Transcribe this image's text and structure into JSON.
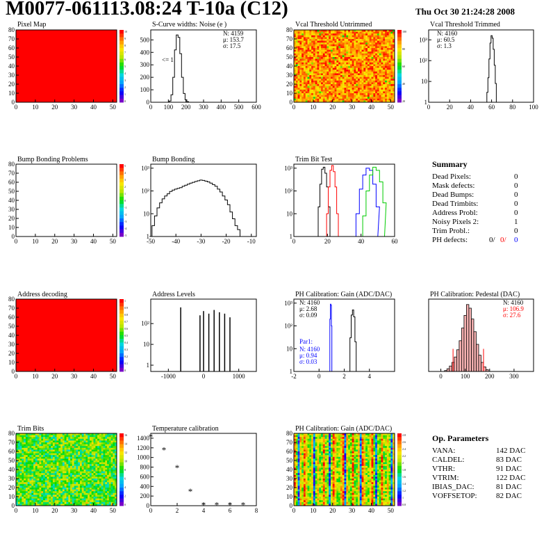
{
  "header": {
    "title": "M0077-061113.08:24 T-10a (C12)",
    "date": "Thu Oct 30 21:24:28 2008"
  },
  "colors": {
    "hist": "#000000",
    "red": "#ff0000",
    "blue": "#0000ff",
    "green": "#00cc00"
  },
  "chart_data": [
    {
      "id": "pixel-map",
      "type": "heatmap",
      "title": "Pixel Map",
      "xlim": [
        0,
        52
      ],
      "ylim": [
        0,
        80
      ],
      "xticks": [
        "0",
        "10",
        "20",
        "30",
        "40",
        "50"
      ],
      "yticks": [
        "0",
        "10",
        "20",
        "30",
        "40",
        "50",
        "60",
        "70",
        "80"
      ],
      "fill": "uniform-red",
      "zlabels": [
        "10",
        "9",
        "8",
        "7",
        "6",
        "5",
        "4",
        "3",
        "2",
        "1",
        "0"
      ]
    },
    {
      "id": "scurve",
      "type": "line",
      "title": "S-Curve widths: Noise (e )",
      "xlim": [
        0,
        600
      ],
      "ylim": [
        0,
        580
      ],
      "xticks": [
        "0",
        "100",
        "200",
        "300",
        "400",
        "500",
        "600"
      ],
      "yticks": [
        "0",
        "100",
        "200",
        "300",
        "400",
        "500"
      ],
      "stats": [
        "N: 4159",
        "μ: 153.7",
        "σ: 17.5"
      ],
      "annotation": "<= 1",
      "x": [
        100,
        110,
        120,
        130,
        140,
        150,
        160,
        170,
        180,
        190,
        200,
        210,
        220,
        230
      ],
      "values": [
        0,
        10,
        60,
        200,
        420,
        540,
        520,
        390,
        200,
        70,
        20,
        5,
        0,
        0
      ]
    },
    {
      "id": "vcal-untrimmed",
      "type": "heatmap",
      "title": "Vcal Threshold Untrimmed",
      "xlim": [
        0,
        52
      ],
      "ylim": [
        0,
        80
      ],
      "xticks": [
        "0",
        "10",
        "20",
        "30",
        "40",
        "50"
      ],
      "yticks": [
        "0",
        "10",
        "20",
        "30",
        "40",
        "50",
        "60",
        "70",
        "80"
      ],
      "fill": "noise-orange",
      "zlabels": [
        "100",
        "80",
        "60",
        "40",
        "20"
      ]
    },
    {
      "id": "vcal-trimmed",
      "type": "line",
      "title": "Vcal Threshold Trimmed",
      "xlim": [
        0,
        100
      ],
      "log": true,
      "ylim": [
        1,
        3000
      ],
      "xticks": [
        "0",
        "20",
        "40",
        "60",
        "80",
        "100"
      ],
      "yticks": [
        "1",
        "10",
        "10²",
        "10³"
      ],
      "stats": [
        "N: 4160",
        "μ: 60.5",
        "σ:  1.3"
      ],
      "x": [
        55,
        56,
        57,
        58,
        59,
        60,
        61,
        62,
        63,
        64,
        65,
        66,
        67
      ],
      "values": [
        1,
        3,
        15,
        120,
        700,
        1600,
        1200,
        350,
        60,
        8,
        1,
        0,
        0
      ]
    },
    {
      "id": "bump-problems",
      "type": "heatmap",
      "title": "Bump Bonding Problems",
      "xlim": [
        0,
        52
      ],
      "ylim": [
        0,
        80
      ],
      "xticks": [
        "0",
        "10",
        "20",
        "30",
        "40",
        "50"
      ],
      "yticks": [
        "0",
        "10",
        "20",
        "30",
        "40",
        "50",
        "60",
        "70",
        "80"
      ],
      "fill": "empty",
      "zlabels": [
        "5",
        "4",
        "3",
        "2",
        "1",
        "0",
        "-1",
        "-2",
        "-3",
        "-4",
        "-5"
      ]
    },
    {
      "id": "bump-bonding",
      "type": "line",
      "title": "Bump Bonding",
      "xlim": [
        -50,
        -8
      ],
      "log": true,
      "ylim": [
        1,
        1500
      ],
      "xticks": [
        "-50",
        "-40",
        "-30",
        "-20",
        "-10"
      ],
      "yticks": [
        "1",
        "10",
        "10²",
        "10³"
      ],
      "x": [
        -50,
        -49,
        -48,
        -47,
        -46,
        -45,
        -44,
        -43,
        -42,
        -41,
        -40,
        -39,
        -38,
        -37,
        -36,
        -35,
        -34,
        -33,
        -32,
        -31,
        -30,
        -29,
        -28,
        -27,
        -26,
        -25,
        -24,
        -23,
        -22,
        -21,
        -20,
        -19,
        -18,
        -17,
        -16,
        -15,
        -14,
        -13,
        -12
      ],
      "values": [
        1,
        3,
        8,
        18,
        30,
        45,
        60,
        75,
        95,
        110,
        120,
        130,
        140,
        160,
        180,
        200,
        220,
        240,
        260,
        280,
        300,
        290,
        270,
        250,
        220,
        190,
        160,
        120,
        90,
        60,
        40,
        25,
        12,
        6,
        3,
        2,
        1,
        1,
        0
      ]
    },
    {
      "id": "trim-bit-test",
      "type": "line",
      "title": "Trim Bit Test",
      "xlim": [
        0,
        60
      ],
      "log": true,
      "ylim": [
        1,
        1500
      ],
      "xticks": [
        "0",
        "20",
        "40",
        "60"
      ],
      "yticks": [
        "1",
        "10",
        "10²",
        "10³"
      ],
      "series": [
        {
          "color": "#000000",
          "x": [
            14,
            15,
            16,
            17,
            18,
            19,
            20,
            21,
            22
          ],
          "values": [
            1,
            20,
            200,
            900,
            1100,
            600,
            150,
            20,
            1
          ]
        },
        {
          "color": "#ff0000",
          "x": [
            19,
            20,
            21,
            22,
            23,
            24,
            25,
            26,
            27
          ],
          "values": [
            1,
            10,
            150,
            800,
            1300,
            700,
            150,
            10,
            1
          ]
        },
        {
          "color": "#0000ff",
          "x": [
            36,
            38,
            40,
            42,
            44,
            46,
            48,
            50,
            51
          ],
          "values": [
            1,
            10,
            120,
            500,
            1000,
            800,
            200,
            20,
            1
          ]
        },
        {
          "color": "#00cc00",
          "x": [
            40,
            42,
            44,
            46,
            48,
            50,
            52,
            54,
            55
          ],
          "values": [
            1,
            8,
            100,
            500,
            1100,
            800,
            250,
            30,
            1
          ]
        }
      ]
    },
    {
      "id": "address-decoding",
      "type": "heatmap",
      "title": "Address decoding",
      "xlim": [
        0,
        52
      ],
      "ylim": [
        0,
        80
      ],
      "xticks": [
        "0",
        "10",
        "20",
        "30",
        "40",
        "50"
      ],
      "yticks": [
        "0",
        "10",
        "20",
        "30",
        "40",
        "50",
        "60",
        "70",
        "80"
      ],
      "fill": "uniform-red",
      "zlabels": [
        "1",
        "0.9",
        "0.8",
        "0.7",
        "0.6",
        "0.5",
        "0.4",
        "0.3",
        "0.2",
        "0.1",
        "0"
      ]
    },
    {
      "id": "address-levels",
      "type": "bar",
      "title": "Address Levels",
      "xlim": [
        -1500,
        1500
      ],
      "log": true,
      "ylim": [
        0.5,
        1500
      ],
      "xticks": [
        "-1000",
        "0",
        "1000"
      ],
      "yticks": [
        "1",
        "10",
        "10²"
      ],
      "x": [
        -650,
        -100,
        0,
        150,
        300,
        450,
        600,
        750
      ],
      "values": [
        600,
        250,
        400,
        300,
        450,
        350,
        300,
        200
      ]
    },
    {
      "id": "ph-gain",
      "type": "line",
      "title": "PH Calibration: Gain (ADC/DAC)",
      "xlim": [
        -2,
        6
      ],
      "log": true,
      "ylim": [
        1,
        1500
      ],
      "xticks": [
        "-2",
        "0",
        "2",
        "4"
      ],
      "yticks": [
        "1",
        "10",
        "10²",
        "10³"
      ],
      "stats": [
        "N: 4160",
        "μ: 2.68",
        "σ: 0.09"
      ],
      "par_label": "Par1:",
      "par_stats": [
        "N: 4160",
        "μ: 0.94",
        "σ: 0.03"
      ],
      "series": [
        {
          "color": "#000000",
          "x": [
            2.4,
            2.5,
            2.6,
            2.7,
            2.8,
            2.9,
            3.0
          ],
          "values": [
            1,
            30,
            300,
            500,
            250,
            20,
            1
          ]
        },
        {
          "color": "#0000ff",
          "x": [
            0.84,
            0.88,
            0.92,
            0.96,
            1.0,
            1.04
          ],
          "values": [
            1,
            200,
            900,
            800,
            100,
            1
          ]
        }
      ]
    },
    {
      "id": "ph-pedestal",
      "type": "bar",
      "title": "PH Calibration: Pedestal (DAC)",
      "xlim": [
        -50,
        380
      ],
      "ylim": [
        0,
        80
      ],
      "xticks": [
        "0",
        "100",
        "200",
        "300"
      ],
      "yticks": [],
      "stats": [
        "N: 4160",
        "μ: 106.9",
        "σ: 27.6"
      ],
      "x": [
        20,
        30,
        40,
        50,
        60,
        70,
        80,
        90,
        100,
        110,
        120,
        130,
        140,
        150,
        160,
        170,
        180,
        190
      ],
      "values": [
        1,
        3,
        6,
        10,
        16,
        24,
        34,
        48,
        62,
        74,
        70,
        58,
        44,
        30,
        18,
        10,
        5,
        2
      ]
    },
    {
      "id": "trim-bits",
      "type": "heatmap",
      "title": "Trim Bits",
      "xlim": [
        0,
        52
      ],
      "ylim": [
        0,
        80
      ],
      "xticks": [
        "0",
        "10",
        "20",
        "30",
        "40",
        "50"
      ],
      "yticks": [
        "0",
        "10",
        "20",
        "30",
        "40",
        "50",
        "60",
        "70",
        "80"
      ],
      "fill": "noise-green",
      "zlabels": [
        "16",
        "14",
        "12",
        "10",
        "8",
        "6",
        "4",
        "2",
        "0"
      ]
    },
    {
      "id": "temp-calibration",
      "type": "scatter",
      "title": "Temperature calibration",
      "xlim": [
        0,
        8
      ],
      "ylim": [
        0,
        1500
      ],
      "xticks": [
        "0",
        "2",
        "4",
        "6",
        "8"
      ],
      "yticks": [
        "0",
        "200",
        "400",
        "600",
        "800",
        "1000",
        "1200",
        "1400"
      ],
      "x": [
        0,
        1,
        2,
        3,
        4,
        5,
        6,
        7
      ],
      "values": [
        1420,
        1150,
        780,
        290,
        10,
        5,
        5,
        5
      ]
    },
    {
      "id": "ph-gain-map",
      "type": "heatmap",
      "title": "PH Calibration: Gain (ADC/DAC)",
      "xlim": [
        0,
        52
      ],
      "ylim": [
        0,
        80
      ],
      "xticks": [
        "0",
        "10",
        "20",
        "30",
        "40",
        "50"
      ],
      "yticks": [
        "0",
        "10",
        "20",
        "30",
        "40",
        "50",
        "60",
        "70",
        "80"
      ],
      "fill": "stripes",
      "zlabels": [
        "2.8",
        "2.6",
        "2.4",
        "2.2",
        "2",
        "1.8",
        "1.6",
        "1.4",
        "1.2",
        "1",
        "0.8"
      ]
    }
  ],
  "summary": {
    "title": "Summary",
    "rows": [
      {
        "label": "Dead Pixels:",
        "value": "0"
      },
      {
        "label": "Mask defects:",
        "value": "0"
      },
      {
        "label": "Dead Bumps:",
        "value": "0"
      },
      {
        "label": "Dead Trimbits:",
        "value": "0"
      },
      {
        "label": "Address Probl:",
        "value": "0"
      },
      {
        "label": "Noisy Pixels 2:",
        "value": "1"
      },
      {
        "label": "Trim Probl.:",
        "value": "0"
      }
    ],
    "ph_label": "PH defects:",
    "ph_values": [
      "0/",
      "0/",
      "0"
    ]
  },
  "parameters": {
    "title": "Op. Parameters",
    "rows": [
      {
        "label": "VANA:",
        "value": "142 DAC"
      },
      {
        "label": "CALDEL:",
        "value": "83 DAC"
      },
      {
        "label": "VTHR:",
        "value": "91 DAC"
      },
      {
        "label": "VTRIM:",
        "value": "122 DAC"
      },
      {
        "label": "IBIAS_DAC:",
        "value": "81 DAC"
      },
      {
        "label": "VOFFSETOP:",
        "value": "82 DAC"
      }
    ]
  }
}
